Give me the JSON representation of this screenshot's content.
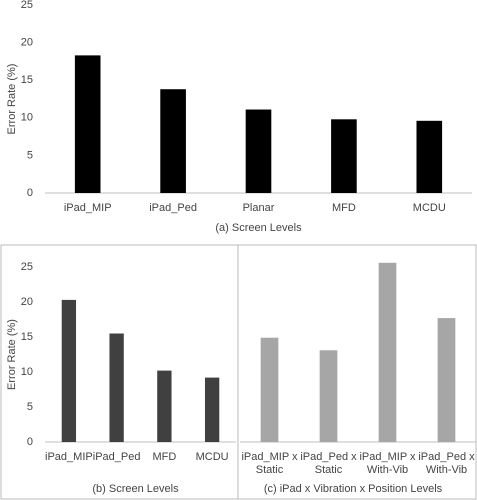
{
  "chart_data": [
    {
      "type": "bar",
      "ylabel": "Error Rate (%)",
      "xlabel": "(a) Screen Levels",
      "categories": [
        "iPad_MIP",
        "iPad_Ped",
        "Planar",
        "MFD",
        "MCDU"
      ],
      "values": [
        18.3,
        13.8,
        11.1,
        9.8,
        9.6
      ],
      "color": "#000000",
      "ylim": [
        0,
        25
      ],
      "yticks": [
        0,
        5,
        10,
        15,
        20,
        25
      ]
    },
    {
      "type": "bar",
      "ylabel": "Error Rate (%)",
      "xlabel": "(b) Screen Levels",
      "categories": [
        "iPad_MIP",
        "iPad_Ped",
        "MFD",
        "MCDU"
      ],
      "values": [
        20.3,
        15.5,
        10.2,
        9.2
      ],
      "color": "#404040",
      "ylim": [
        0,
        25
      ],
      "yticks": [
        0,
        5,
        10,
        15,
        20,
        25
      ]
    },
    {
      "type": "bar",
      "xlabel": "(c) iPad x Vibration x Position Levels",
      "categories": [
        [
          "iPad_MIP x",
          "Static"
        ],
        [
          "iPad_Ped x",
          "Static"
        ],
        [
          "iPad_MIP x",
          "With-Vib"
        ],
        [
          "iPad_Ped x",
          "With-Vib"
        ]
      ],
      "values": [
        14.9,
        13.1,
        25.6,
        17.7
      ],
      "color": "#a6a6a6",
      "ylim": [
        0,
        25
      ]
    }
  ]
}
